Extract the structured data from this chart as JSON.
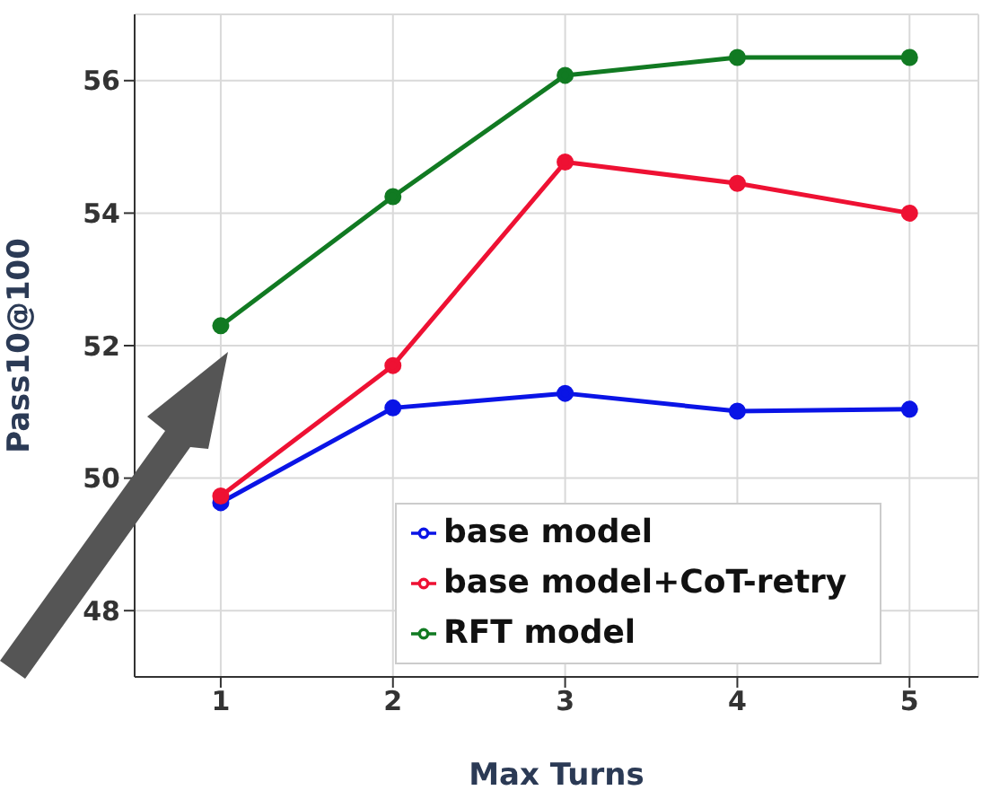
{
  "chart_data": {
    "type": "line",
    "xlabel": "Max Turns",
    "ylabel": "Pass10@100",
    "x": [
      1,
      2,
      3,
      4,
      5
    ],
    "xlim": [
      0.5,
      5.4
    ],
    "xticks": [
      1,
      2,
      3,
      4,
      5
    ],
    "ylim": [
      47,
      57
    ],
    "yticks": [
      48,
      50,
      52,
      54,
      56
    ],
    "grid": true,
    "legend": "bottom right",
    "marker": "circle",
    "line_style": "solid",
    "series": [
      {
        "name": "base model",
        "color": "#0a14e6",
        "values": [
          49.63,
          51.06,
          51.28,
          51.01,
          51.04
        ]
      },
      {
        "name": "base model+CoT-retry",
        "color": "#ee1133",
        "values": [
          49.73,
          51.7,
          54.77,
          54.45,
          54.0
        ]
      },
      {
        "name": "RFT model",
        "color": "#117a22",
        "values": [
          52.3,
          54.25,
          56.08,
          56.35,
          56.35
        ]
      }
    ]
  }
}
